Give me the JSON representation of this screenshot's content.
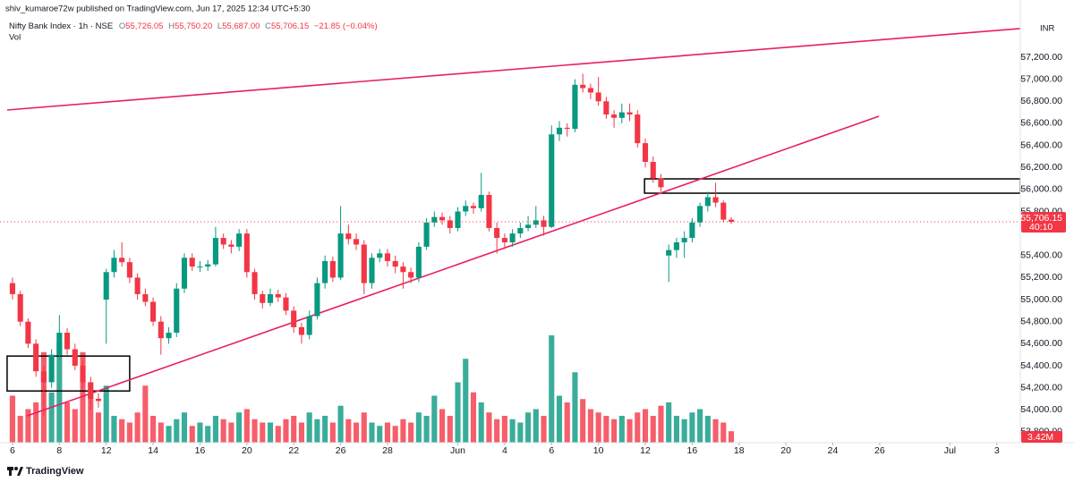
{
  "header": {
    "publisher": "shiv_kumaroe72w published on TradingView.com, Jun 17, 2025 12:34 UTC+5:30",
    "symbol": "Nifty Bank Index · 1h · NSE",
    "ohlc": [
      {
        "key": "O",
        "value": "55,726.05"
      },
      {
        "key": "H",
        "value": "55,750.20"
      },
      {
        "key": "L",
        "value": "55,687.00"
      },
      {
        "key": "C",
        "value": "55,706.15"
      }
    ],
    "change": "−21.85 (−0.04%)",
    "vol": "Vol",
    "currency": "INR"
  },
  "chart_data": {
    "type": "candlestick",
    "x": [
      0,
      1,
      2,
      3,
      4,
      5,
      6,
      7,
      8,
      9,
      10,
      11,
      12,
      13,
      14,
      15,
      16,
      17,
      18,
      19,
      20,
      21,
      22,
      23,
      24,
      25,
      26,
      27,
      28,
      29,
      30,
      31,
      32,
      33,
      34,
      35,
      36,
      37,
      38,
      39,
      40,
      41,
      42,
      43,
      44,
      45,
      46,
      47,
      48,
      49,
      50,
      51,
      52,
      53,
      54,
      55,
      56,
      57,
      58,
      59,
      60,
      61,
      62,
      63,
      64,
      65,
      66,
      67,
      68,
      69,
      70,
      71,
      72,
      73,
      74,
      75,
      76,
      77,
      78,
      79,
      80,
      81,
      82,
      83,
      84,
      85,
      86,
      87,
      88,
      89,
      90,
      91,
      92
    ],
    "candles": [
      [
        55150,
        55200,
        55000,
        55050
      ],
      [
        55050,
        55080,
        54760,
        54800
      ],
      [
        54800,
        54830,
        54560,
        54600
      ],
      [
        54600,
        54640,
        54300,
        54350
      ],
      [
        54350,
        54400,
        53950,
        54250
      ],
      [
        54250,
        54550,
        54200,
        54500
      ],
      [
        54500,
        54860,
        54460,
        54700
      ],
      [
        54700,
        54740,
        54500,
        54550
      ],
      [
        54550,
        54600,
        54360,
        54400
      ],
      [
        54400,
        54450,
        54200,
        54250
      ],
      [
        54250,
        54300,
        54000,
        54100
      ],
      [
        54100,
        54150,
        54020,
        54080
      ],
      [
        55000,
        55280,
        54600,
        55250
      ],
      [
        55250,
        55450,
        55200,
        55380
      ],
      [
        55380,
        55520,
        55300,
        55340
      ],
      [
        55340,
        55380,
        55150,
        55200
      ],
      [
        55200,
        55240,
        55000,
        55050
      ],
      [
        55050,
        55100,
        54940,
        54980
      ],
      [
        54980,
        55020,
        54760,
        54800
      ],
      [
        54800,
        54850,
        54500,
        54650
      ],
      [
        54650,
        54750,
        54600,
        54700
      ],
      [
        54700,
        55150,
        54660,
        55100
      ],
      [
        55100,
        55420,
        55060,
        55380
      ],
      [
        55380,
        55420,
        55260,
        55300
      ],
      [
        55300,
        55350,
        55250,
        55300
      ],
      [
        55300,
        55360,
        55260,
        55320
      ],
      [
        55320,
        55660,
        55300,
        55560
      ],
      [
        55560,
        55600,
        55460,
        55500
      ],
      [
        55500,
        55540,
        55420,
        55480
      ],
      [
        55480,
        55640,
        55440,
        55600
      ],
      [
        55600,
        55640,
        55200,
        55250
      ],
      [
        55250,
        55280,
        55000,
        55050
      ],
      [
        55050,
        55080,
        54920,
        54970
      ],
      [
        54970,
        55100,
        54940,
        55050
      ],
      [
        55050,
        55090,
        54980,
        55020
      ],
      [
        55020,
        55060,
        54860,
        54900
      ],
      [
        54900,
        54940,
        54700,
        54750
      ],
      [
        54750,
        54790,
        54600,
        54680
      ],
      [
        54680,
        54900,
        54640,
        54850
      ],
      [
        54850,
        55200,
        54820,
        55150
      ],
      [
        55150,
        55400,
        55100,
        55350
      ],
      [
        55350,
        55390,
        55160,
        55200
      ],
      [
        55200,
        55850,
        55180,
        55600
      ],
      [
        55600,
        55680,
        55500,
        55550
      ],
      [
        55550,
        55600,
        55450,
        55500
      ],
      [
        55500,
        55540,
        55050,
        55150
      ],
      [
        55150,
        55420,
        55100,
        55380
      ],
      [
        55380,
        55460,
        55340,
        55420
      ],
      [
        55420,
        55460,
        55300,
        55350
      ],
      [
        55350,
        55400,
        55240,
        55300
      ],
      [
        55300,
        55340,
        55100,
        55250
      ],
      [
        55250,
        55290,
        55150,
        55200
      ],
      [
        55200,
        55520,
        55160,
        55480
      ],
      [
        55480,
        55740,
        55450,
        55700
      ],
      [
        55700,
        55800,
        55660,
        55750
      ],
      [
        55750,
        55790,
        55680,
        55720
      ],
      [
        55720,
        55760,
        55600,
        55650
      ],
      [
        55650,
        55840,
        55620,
        55800
      ],
      [
        55800,
        55900,
        55760,
        55850
      ],
      [
        55850,
        55880,
        55780,
        55830
      ],
      [
        55830,
        56150,
        55800,
        55950
      ],
      [
        55950,
        55980,
        55620,
        55650
      ],
      [
        55650,
        55700,
        55420,
        55560
      ],
      [
        55560,
        55600,
        55460,
        55520
      ],
      [
        55520,
        55640,
        55480,
        55600
      ],
      [
        55600,
        55700,
        55560,
        55650
      ],
      [
        55650,
        55760,
        55620,
        55680
      ],
      [
        55680,
        55850,
        55650,
        55720
      ],
      [
        55720,
        55760,
        55580,
        55660
      ],
      [
        55660,
        56580,
        55650,
        56500
      ],
      [
        56500,
        56620,
        56440,
        56560
      ],
      [
        56560,
        56600,
        56480,
        56550
      ],
      [
        56550,
        57000,
        56520,
        56950
      ],
      [
        56950,
        57050,
        56880,
        56920
      ],
      [
        56920,
        56960,
        56820,
        56880
      ],
      [
        56880,
        57020,
        56760,
        56800
      ],
      [
        56800,
        56840,
        56640,
        56680
      ],
      [
        56680,
        56720,
        56560,
        56650
      ],
      [
        56650,
        56780,
        56600,
        56700
      ],
      [
        56700,
        56780,
        56620,
        56680
      ],
      [
        56680,
        56720,
        56380,
        56420
      ],
      [
        56420,
        56460,
        56200,
        56250
      ],
      [
        56250,
        56300,
        56060,
        56100
      ],
      [
        56100,
        56140,
        55980,
        56020
      ],
      [
        55400,
        55500,
        55160,
        55450
      ],
      [
        55450,
        55560,
        55380,
        55520
      ],
      [
        55520,
        55620,
        55380,
        55560
      ],
      [
        55560,
        55740,
        55520,
        55700
      ],
      [
        55700,
        55880,
        55660,
        55850
      ],
      [
        55850,
        55980,
        55800,
        55930
      ],
      [
        55930,
        56060,
        55840,
        55880
      ],
      [
        55880,
        55900,
        55700,
        55726
      ],
      [
        55726.05,
        55750.2,
        55687,
        55706.15
      ]
    ],
    "volume": [
      14,
      8,
      10,
      12,
      27,
      15,
      30,
      12,
      10,
      27,
      14,
      9,
      17,
      8,
      7,
      6,
      9,
      17,
      8,
      6,
      5,
      7,
      9,
      5,
      6,
      5,
      8,
      7,
      6,
      9,
      10,
      7,
      6,
      6,
      5,
      7,
      8,
      6,
      9,
      7,
      8,
      6,
      11,
      7,
      6,
      9,
      6,
      5,
      6,
      5,
      7,
      6,
      9,
      8,
      14,
      10,
      8,
      18,
      25,
      15,
      12,
      9,
      7,
      8,
      7,
      6,
      9,
      10,
      8,
      32,
      14,
      12,
      21,
      13,
      10,
      9,
      8,
      7,
      8,
      7,
      9,
      10,
      8,
      11,
      12,
      8,
      7,
      9,
      10,
      8,
      7,
      6,
      3.42
    ],
    "volume_ylim": [
      0,
      40
    ],
    "last_volume_label": "3.42M",
    "up_color": "#089981",
    "down_color": "#f23645",
    "xlim": [
      -1.6,
      129
    ],
    "ylim": [
      53702,
      57557
    ],
    "xticks": [
      {
        "value": 0,
        "label": "6"
      },
      {
        "value": 6,
        "label": "8"
      },
      {
        "value": 12,
        "label": "12"
      },
      {
        "value": 18,
        "label": "14"
      },
      {
        "value": 24,
        "label": "16"
      },
      {
        "value": 30,
        "label": "20"
      },
      {
        "value": 36,
        "label": "22"
      },
      {
        "value": 42,
        "label": "26"
      },
      {
        "value": 48,
        "label": "28"
      },
      {
        "value": 57,
        "label": "Jun"
      },
      {
        "value": 63,
        "label": "4"
      },
      {
        "value": 69,
        "label": "6"
      },
      {
        "value": 75,
        "label": "10"
      },
      {
        "value": 81,
        "label": "12"
      },
      {
        "value": 87,
        "label": "16"
      },
      {
        "value": 93,
        "label": "18"
      },
      {
        "value": 99,
        "label": "20"
      },
      {
        "value": 105,
        "label": "24"
      },
      {
        "value": 111,
        "label": "26"
      },
      {
        "value": 120,
        "label": "Jul"
      },
      {
        "value": 126,
        "label": "3"
      }
    ],
    "yticks": [
      {
        "value": 57200,
        "label": "57,200.00"
      },
      {
        "value": 57000,
        "label": "57,000.00"
      },
      {
        "value": 56800,
        "label": "56,800.00"
      },
      {
        "value": 56600,
        "label": "56,600.00"
      },
      {
        "value": 56400,
        "label": "56,400.00"
      },
      {
        "value": 56200,
        "label": "56,200.00"
      },
      {
        "value": 56000,
        "label": "56,000.00"
      },
      {
        "value": 55800,
        "label": "55,800.00"
      },
      {
        "value": 55400,
        "label": "55,400.00"
      },
      {
        "value": 55200,
        "label": "55,200.00"
      },
      {
        "value": 55000,
        "label": "55,000.00"
      },
      {
        "value": 54800,
        "label": "54,800.00"
      },
      {
        "value": 54600,
        "label": "54,600.00"
      },
      {
        "value": 54400,
        "label": "54,400.00"
      },
      {
        "value": 54200,
        "label": "54,200.00"
      },
      {
        "value": 54000,
        "label": "54,000.00"
      },
      {
        "value": 53800,
        "label": "53,800.00"
      }
    ],
    "last_price": {
      "value": 55706.15,
      "label": "55,706.15"
    },
    "countdown": "40:10",
    "trendlines": [
      {
        "color": "#e91e63",
        "x": [
          -0.69,
          129
        ],
        "y": [
          56721,
          57460
        ]
      },
      {
        "color": "#e91e63",
        "x": [
          1.83,
          110.9
        ],
        "y": [
          53944,
          56664
        ]
      }
    ],
    "boxes": [
      {
        "color": "#000000",
        "x": [
          -0.69,
          15
        ],
        "y": [
          54488,
          54171
        ]
      },
      {
        "color": "#000000",
        "x": [
          80.9,
          129
        ],
        "y": [
          56096,
          55966
        ]
      }
    ]
  },
  "footer": {
    "brand": "TradingView"
  }
}
